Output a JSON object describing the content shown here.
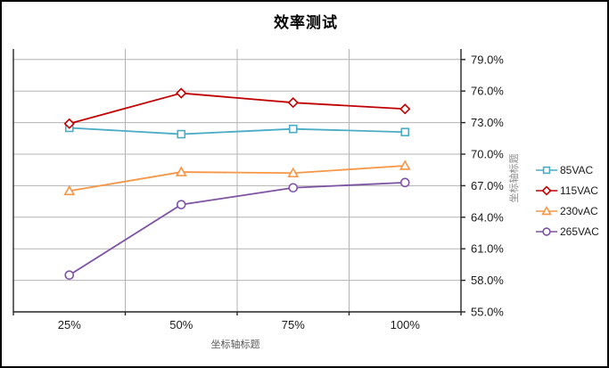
{
  "chart_data": {
    "type": "line",
    "title": "效率测试",
    "xlabel": "坐标轴标题",
    "ylabel": "坐标轴标题",
    "categories": [
      "25%",
      "50%",
      "75%",
      "100%"
    ],
    "series": [
      {
        "name": "85VAC",
        "marker": "square",
        "color": "#4BACC6",
        "values": [
          72.5,
          71.9,
          72.4,
          72.1
        ]
      },
      {
        "name": "115VAC",
        "marker": "diamond",
        "color": "#C00000",
        "values": [
          72.9,
          75.8,
          74.9,
          74.3
        ]
      },
      {
        "name": "230vAC",
        "marker": "triangle",
        "color": "#F79646",
        "values": [
          66.5,
          68.3,
          68.2,
          68.9
        ]
      },
      {
        "name": "265VAC",
        "marker": "circle",
        "color": "#7D52A3",
        "values": [
          58.5,
          65.2,
          66.8,
          67.3
        ]
      }
    ],
    "y_axis": {
      "min": 55,
      "max": 80,
      "step": 3,
      "side": "right",
      "labels": [
        "55.0%",
        "58.0%",
        "61.0%",
        "64.0%",
        "67.0%",
        "70.0%",
        "73.0%",
        "76.0%",
        "79.0%"
      ]
    },
    "legend_position": "right",
    "grid": true,
    "grid_color": "#b3b3b3",
    "axis_color": "#262626",
    "tick_label_color": "#1a1a1a"
  }
}
